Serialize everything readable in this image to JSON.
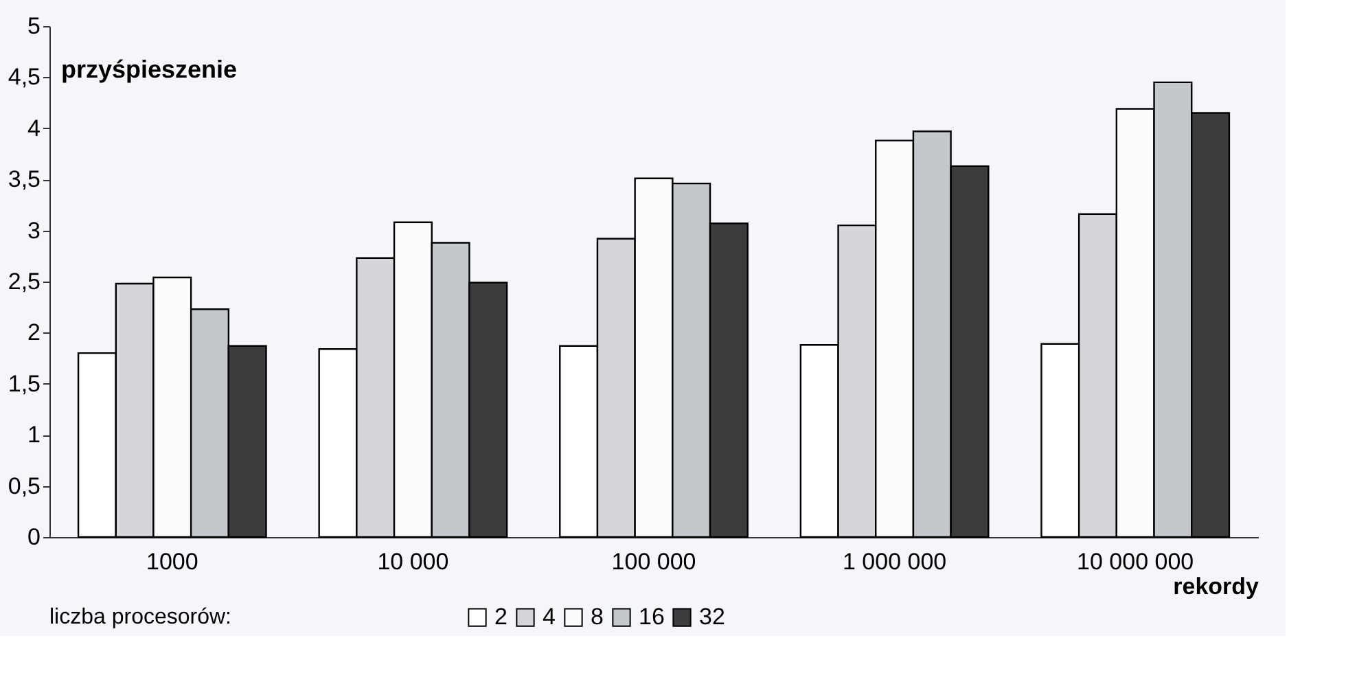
{
  "chart_data": {
    "type": "bar",
    "ylabel": "przyśpieszenie",
    "xlabel": "rekordy",
    "legend_title": "liczba procesorów:",
    "legend": "bottom",
    "grid": false,
    "categories": [
      "1000",
      "10 000",
      "100 000",
      "1 000 000",
      "10 000 000"
    ],
    "ylim": [
      0,
      5
    ],
    "yticks": [
      0,
      {
        "value": 0.5,
        "label": "0,5"
      },
      1,
      {
        "value": 1.5,
        "label": "1,5"
      },
      2,
      {
        "value": 2.5,
        "label": "2,5"
      },
      3,
      {
        "value": 3.5,
        "label": "3,5"
      },
      4,
      {
        "value": 4.5,
        "label": "4,5"
      },
      5
    ],
    "series": [
      {
        "name": "2",
        "color": "#ffffff",
        "values": [
          1.8,
          1.84,
          1.87,
          1.88,
          1.89
        ]
      },
      {
        "name": "4",
        "color": "#d4d6da",
        "values": [
          2.48,
          2.73,
          2.92,
          3.05,
          3.16
        ]
      },
      {
        "name": "8",
        "color": "#fbfcfd",
        "values": [
          2.54,
          3.08,
          3.51,
          3.88,
          4.19
        ]
      },
      {
        "name": "16",
        "color": "#c4c7cc",
        "values": [
          2.23,
          2.88,
          3.46,
          3.97,
          4.45
        ]
      },
      {
        "name": "32",
        "color": "#3c3c3e",
        "values": [
          1.87,
          2.49,
          3.07,
          3.63,
          4.15
        ]
      }
    ]
  }
}
